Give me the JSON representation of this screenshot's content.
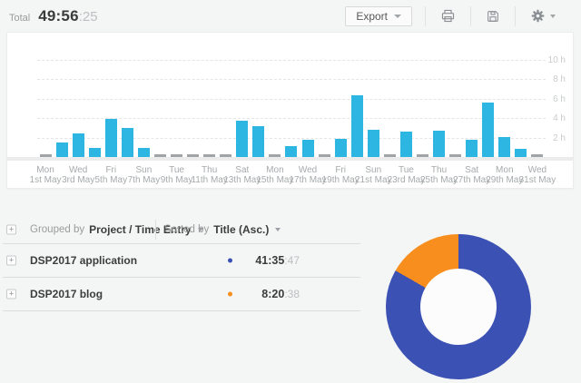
{
  "header": {
    "total_label": "Total",
    "total_main": "49:56",
    "total_seconds": ":25",
    "export_button": "Export"
  },
  "controls": {
    "grouped_by_label": "Grouped by",
    "grouped_by_value": "Project / Time Entry",
    "sorted_by_label": "Sorted by",
    "sorted_by_value": "Title (Asc.)"
  },
  "rows": [
    {
      "title": "DSP2017 application",
      "dot_color": "#3b51b3",
      "time_main": "41:35",
      "time_seconds": ":47"
    },
    {
      "title": "DSP2017 blog",
      "dot_color": "#f78e1e",
      "time_main": "8:20",
      "time_seconds": ":38"
    }
  ],
  "chart_data": [
    {
      "type": "bar",
      "title": "",
      "xlabel": "",
      "ylabel": "hours",
      "ylim": [
        0,
        11.5
      ],
      "grid": "dashed horizontal",
      "legend": "none",
      "bar_color": "#2db6e1",
      "zero_marker_color": "#a0a4a7",
      "y_ticks": [
        {
          "v": 2,
          "label": "2 h"
        },
        {
          "v": 4,
          "label": "4 h"
        },
        {
          "v": 6,
          "label": "6 h"
        },
        {
          "v": 8,
          "label": "8 h"
        },
        {
          "v": 10,
          "label": "10 h"
        }
      ],
      "categories_note": "31 days of May, tick label on every odd day",
      "values": [
        0,
        1.45,
        2.4,
        0.9,
        3.9,
        2.95,
        0.9,
        0,
        0,
        0,
        0,
        0,
        3.7,
        3.2,
        0,
        1.1,
        1.75,
        0,
        1.9,
        6.4,
        2.85,
        0,
        2.6,
        0,
        2.75,
        0,
        1.8,
        5.6,
        2.1,
        0.85,
        0
      ],
      "tick_labels": [
        [
          "Mon",
          "1st May"
        ],
        [
          "Wed",
          "3rd May"
        ],
        [
          "Fri",
          "5th May"
        ],
        [
          "Sun",
          "7th May"
        ],
        [
          "Tue",
          "9th May"
        ],
        [
          "Thu",
          "11th May"
        ],
        [
          "Sat",
          "13th May"
        ],
        [
          "Mon",
          "15th May"
        ],
        [
          "Wed",
          "17th May"
        ],
        [
          "Fri",
          "19th May"
        ],
        [
          "Sun",
          "21st May"
        ],
        [
          "Tue",
          "23rd May"
        ],
        [
          "Thu",
          "25th May"
        ],
        [
          "Sat",
          "27th May"
        ],
        [
          "Mon",
          "29th May"
        ],
        [
          "Wed",
          "31st May"
        ]
      ]
    },
    {
      "type": "pie",
      "subtype": "donut",
      "legend": "row dots at left",
      "start_angle": "12 o'clock, clockwise",
      "slices": [
        {
          "name": "DSP2017 application",
          "time": "41:35:47",
          "hours": 41.596,
          "color": "#3b51b3"
        },
        {
          "name": "DSP2017 blog",
          "time": "8:20:38",
          "hours": 8.344,
          "color": "#f78e1e"
        }
      ]
    }
  ]
}
